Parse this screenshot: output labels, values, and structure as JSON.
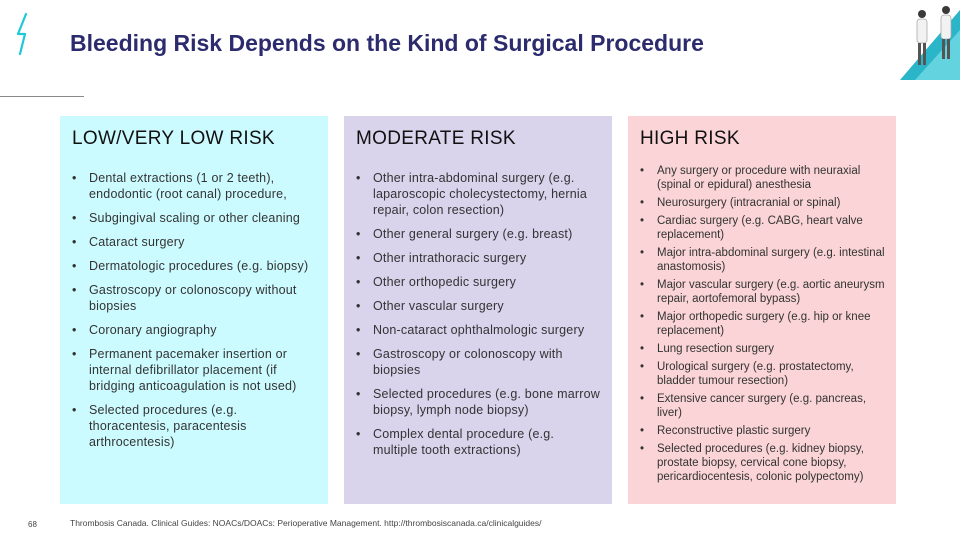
{
  "title": "Bleeding Risk Depends on the Kind of Surgical Procedure",
  "columns": [
    {
      "heading": "LOW/VERY LOW RISK",
      "items": [
        "Dental extractions (1 or 2 teeth), endodontic (root canal) procedure,",
        "Subgingival scaling or other cleaning",
        "Cataract surgery",
        "Dermatologic procedures (e.g. biopsy)",
        "Gastroscopy or colonoscopy without biopsies",
        "Coronary angiography",
        "Permanent pacemaker insertion or internal defibrillator placement (if bridging anticoagulation is not used)",
        "Selected procedures (e.g. thoracentesis, paracentesis arthrocentesis)"
      ]
    },
    {
      "heading": "MODERATE RISK",
      "items": [
        "Other intra-abdominal surgery (e.g. laparoscopic cholecystectomy, hernia repair, colon resection)",
        "Other general surgery (e.g. breast)",
        "Other intrathoracic surgery",
        "Other orthopedic surgery",
        "Other vascular surgery",
        "Non-cataract ophthalmologic surgery",
        "Gastroscopy or colonoscopy with biopsies",
        "Selected procedures (e.g. bone marrow biopsy, lymph node biopsy)",
        "Complex dental procedure (e.g. multiple tooth extractions)"
      ]
    },
    {
      "heading": "HIGH RISK",
      "items": [
        "Any surgery or procedure with neuraxial (spinal or epidural) anesthesia",
        "Neurosurgery (intracranial or spinal)",
        "Cardiac surgery (e.g. CABG, heart valve replacement)",
        "Major intra-abdominal surgery (e.g. intestinal anastomosis)",
        "Major vascular surgery (e.g. aortic aneurysm repair, aortofemoral bypass)",
        "Major orthopedic surgery (e.g. hip or knee replacement)",
        "Lung resection surgery",
        "Urological surgery (e.g. prostatectomy, bladder tumour resection)",
        "Extensive cancer surgery (e.g. pancreas, liver)",
        "Reconstructive plastic surgery",
        "Selected procedures (e.g. kidney biopsy, prostate biopsy, cervical cone biopsy, pericardiocentesis, colonic polypectomy)"
      ]
    }
  ],
  "bullet": "•",
  "footer": "Thrombosis Canada. Clinical Guides: NOACs/DOACs: Perioperative Management. http://thrombosiscanada.ca/clinicalguides/",
  "page_number": "68",
  "colors": {
    "title": "#2b2b6e",
    "low": "#ccfbff",
    "moderate": "#d9d3ec",
    "high": "#fad4d6",
    "accent": "#1ec8d8"
  }
}
